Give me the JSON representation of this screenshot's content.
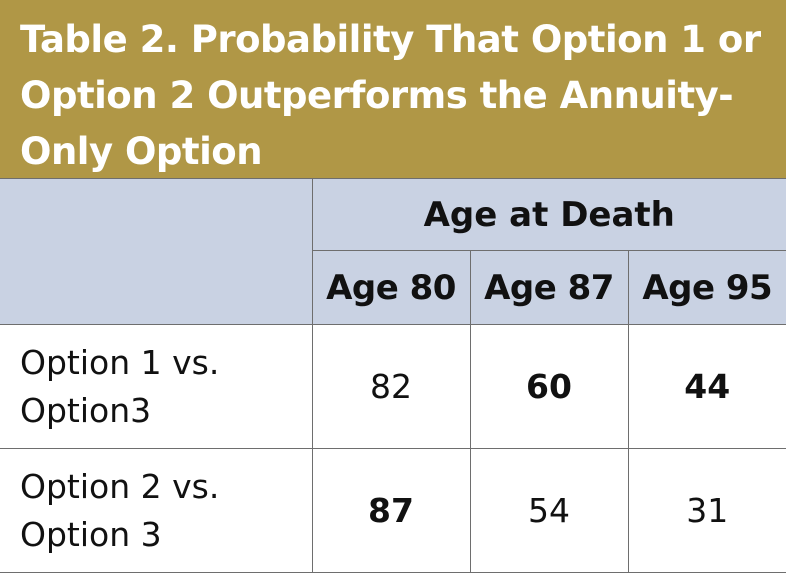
{
  "title": {
    "line1": "Table 2. Probability That Option 1 or",
    "line2": "Option 2 Outperforms the Annuity-",
    "line3": "Only Option"
  },
  "table": {
    "group_header": "Age at Death",
    "columns": [
      "Age 80",
      "Age 87",
      "Age 95"
    ],
    "rows": [
      {
        "label_line1": "Option 1 vs.",
        "label_line2": "Option3",
        "cells": [
          {
            "value": "82",
            "bold": false
          },
          {
            "value": "60",
            "bold": true
          },
          {
            "value": "44",
            "bold": true
          }
        ]
      },
      {
        "label_line1": "Option 2 vs.",
        "label_line2": "Option 3",
        "cells": [
          {
            "value": "87",
            "bold": true
          },
          {
            "value": "54",
            "bold": false
          },
          {
            "value": "31",
            "bold": false
          }
        ]
      }
    ]
  },
  "colors": {
    "title_background": "#b09746",
    "title_text": "#ffffff",
    "header_background": "#c9d2e3",
    "border": "#6e6e6e"
  }
}
